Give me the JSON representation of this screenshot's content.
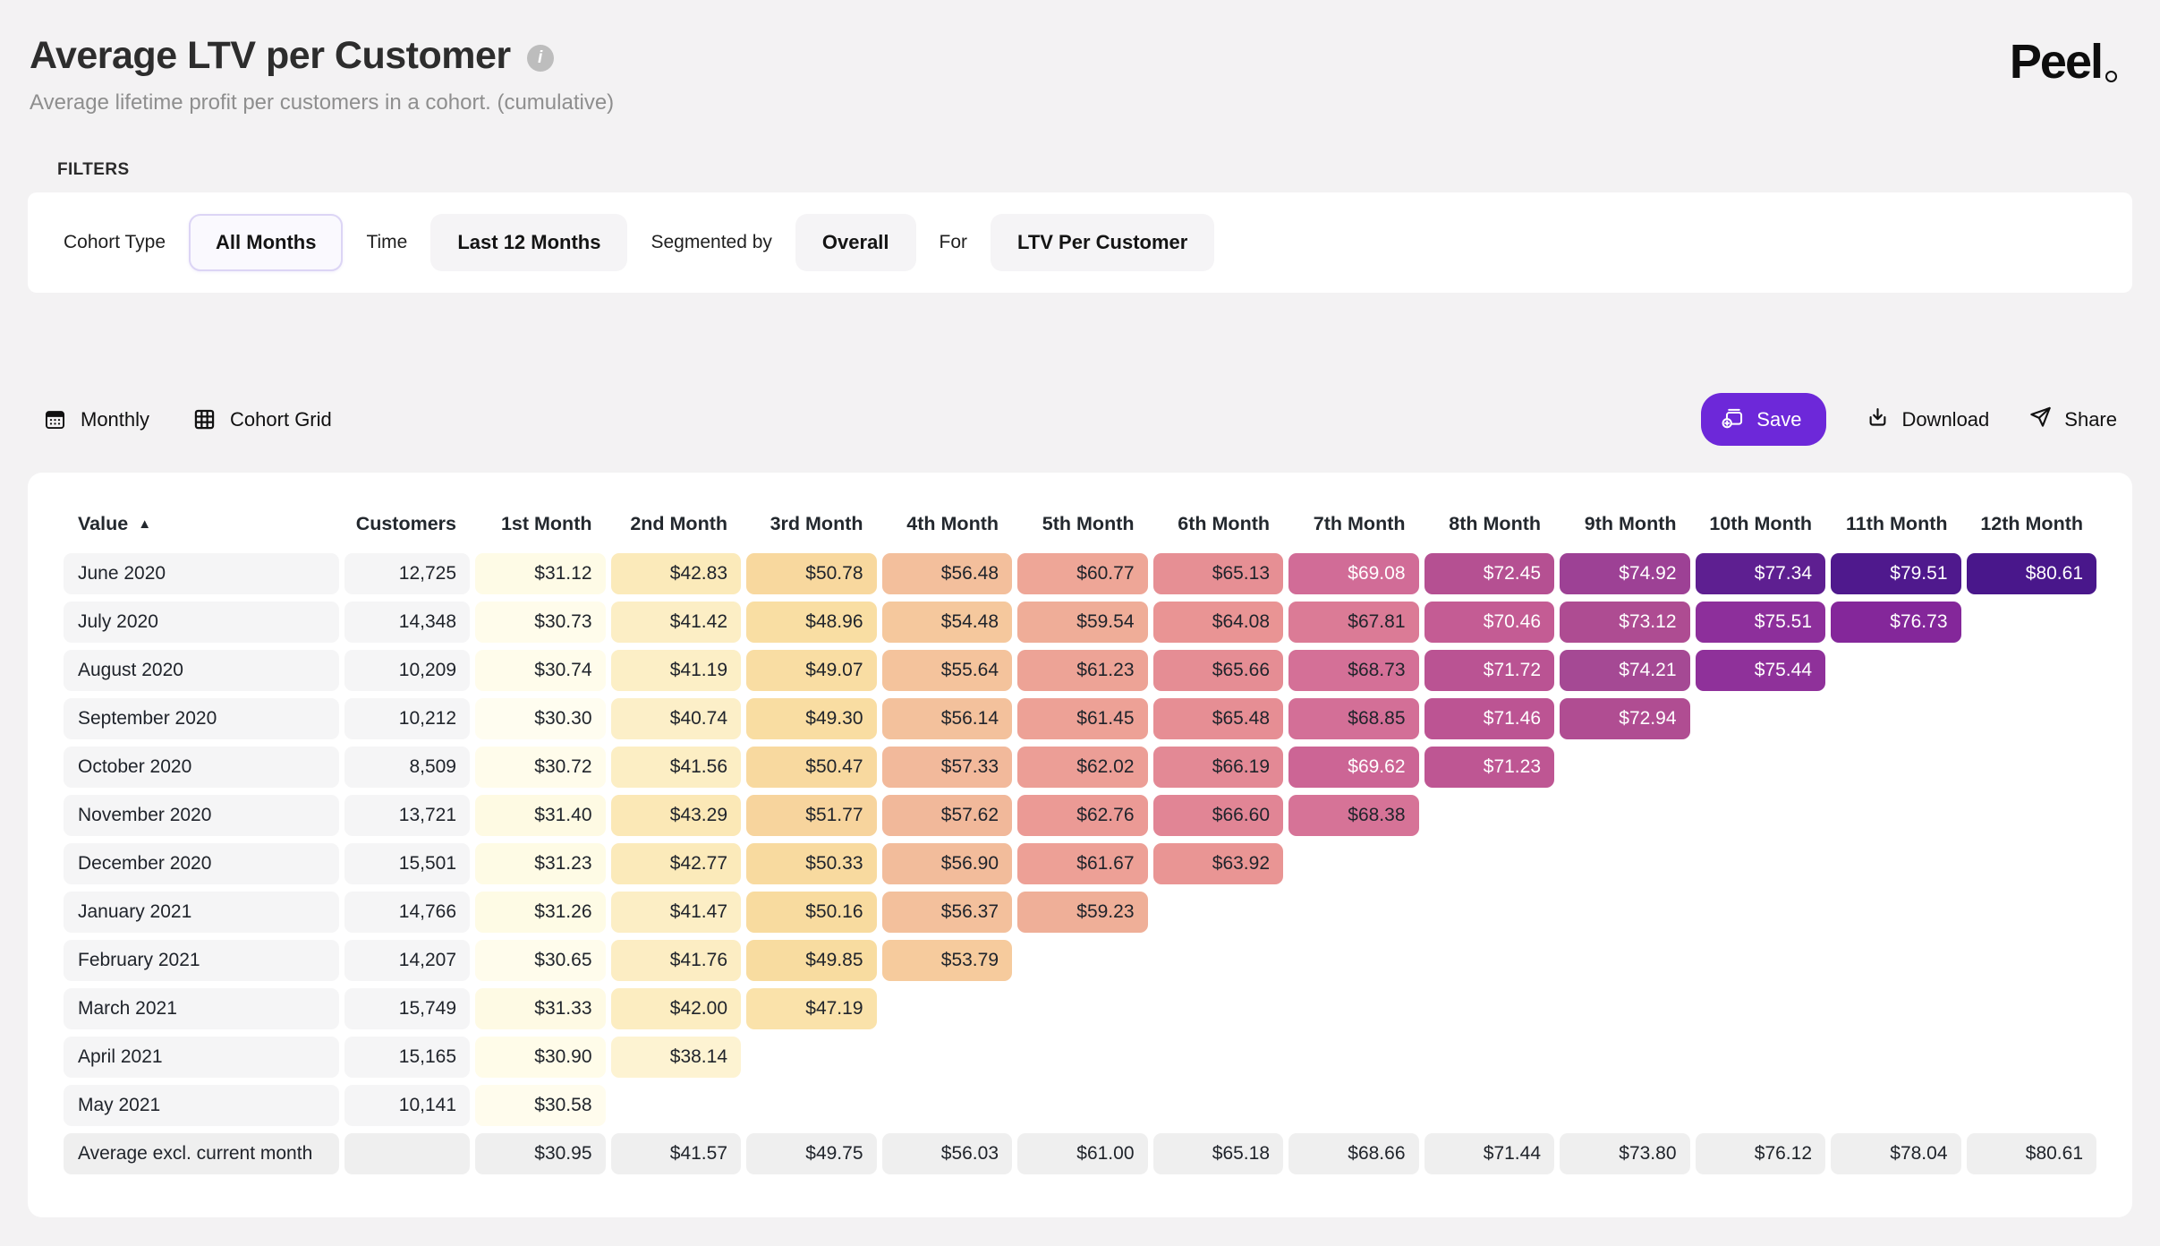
{
  "page": {
    "title": "Average LTV per Customer",
    "subtitle": "Average lifetime profit per customers in a cohort. (cumulative)",
    "filters_heading": "FILTERS",
    "brand": "Peel"
  },
  "filters": [
    {
      "label": "Cohort Type",
      "value": "All Months",
      "selected": true
    },
    {
      "label": "Time",
      "value": "Last 12 Months",
      "selected": false
    },
    {
      "label": "Segmented by",
      "value": "Overall",
      "selected": false
    },
    {
      "label": "For",
      "value": "LTV Per Customer",
      "selected": false
    }
  ],
  "toolbar": {
    "views": [
      {
        "label": "Monthly",
        "icon": "calendar-icon"
      },
      {
        "label": "Cohort Grid",
        "icon": "grid-icon"
      }
    ],
    "actions": [
      {
        "label": "Save",
        "icon": "save-plus-icon",
        "accent": true
      },
      {
        "label": "Download",
        "icon": "download-icon",
        "accent": false
      },
      {
        "label": "Share",
        "icon": "share-icon",
        "accent": false
      }
    ]
  },
  "colors": {
    "accent": "#6D28D9",
    "selected_pill_border": "#DCD5F5",
    "row_label_bg": "#F5F5F6",
    "avg_row_bg": "#EFEFEF",
    "info_icon_bg": "#BDBDBD"
  },
  "chart_data": {
    "type": "heatmap",
    "title": "Average LTV per Customer",
    "value_prefix": "$",
    "sort": {
      "column": "Value",
      "direction": "asc"
    },
    "columns": [
      "Value",
      "Customers",
      "1st Month",
      "2nd Month",
      "3rd Month",
      "4th Month",
      "5th Month",
      "6th Month",
      "7th Month",
      "8th Month",
      "9th Month",
      "10th Month",
      "11th Month",
      "12th Month"
    ],
    "rows": [
      {
        "label": "June 2020",
        "customers": "12,725",
        "values": [
          31.12,
          42.83,
          50.78,
          56.48,
          60.77,
          65.13,
          69.08,
          72.45,
          74.92,
          77.34,
          79.51,
          80.61
        ]
      },
      {
        "label": "July 2020",
        "customers": "14,348",
        "values": [
          30.73,
          41.42,
          48.96,
          54.48,
          59.54,
          64.08,
          67.81,
          70.46,
          73.12,
          75.51,
          76.73
        ]
      },
      {
        "label": "August 2020",
        "customers": "10,209",
        "values": [
          30.74,
          41.19,
          49.07,
          55.64,
          61.23,
          65.66,
          68.73,
          71.72,
          74.21,
          75.44
        ]
      },
      {
        "label": "September 2020",
        "customers": "10,212",
        "values": [
          30.3,
          40.74,
          49.3,
          56.14,
          61.45,
          65.48,
          68.85,
          71.46,
          72.94
        ]
      },
      {
        "label": "October 2020",
        "customers": "8,509",
        "values": [
          30.72,
          41.56,
          50.47,
          57.33,
          62.02,
          66.19,
          69.62,
          71.23
        ]
      },
      {
        "label": "November 2020",
        "customers": "13,721",
        "values": [
          31.4,
          43.29,
          51.77,
          57.62,
          62.76,
          66.6,
          68.38
        ]
      },
      {
        "label": "December 2020",
        "customers": "15,501",
        "values": [
          31.23,
          42.77,
          50.33,
          56.9,
          61.67,
          63.92
        ]
      },
      {
        "label": "January 2021",
        "customers": "14,766",
        "values": [
          31.26,
          41.47,
          50.16,
          56.37,
          59.23
        ]
      },
      {
        "label": "February 2021",
        "customers": "14,207",
        "values": [
          30.65,
          41.76,
          49.85,
          53.79
        ]
      },
      {
        "label": "March 2021",
        "customers": "15,749",
        "values": [
          31.33,
          42.0,
          47.19
        ]
      },
      {
        "label": "April 2021",
        "customers": "15,165",
        "values": [
          30.9,
          38.14
        ]
      },
      {
        "label": "May 2021",
        "customers": "10,141",
        "values": [
          30.58
        ]
      }
    ],
    "footer": {
      "label": "Average excl. current month",
      "values": [
        30.95,
        41.57,
        49.75,
        56.03,
        61.0,
        65.18,
        68.66,
        71.44,
        73.8,
        76.12,
        78.04,
        80.61
      ]
    },
    "color_stops": [
      [
        30.3,
        "#FFFDF0"
      ],
      [
        31.5,
        "#FEFAE2"
      ],
      [
        38.2,
        "#FDF3D2"
      ],
      [
        41.6,
        "#FCEEC4"
      ],
      [
        43.3,
        "#FBE8B6"
      ],
      [
        47.2,
        "#FAE2AA"
      ],
      [
        50.1,
        "#F8DB9F"
      ],
      [
        51.8,
        "#F7D49D"
      ],
      [
        53.8,
        "#F6CB9D"
      ],
      [
        56.5,
        "#F3BF9C"
      ],
      [
        57.7,
        "#F1B79A"
      ],
      [
        59.6,
        "#EFAD98"
      ],
      [
        61.5,
        "#EDA196"
      ],
      [
        62.8,
        "#EB9A95"
      ],
      [
        64.1,
        "#E99494"
      ],
      [
        65.7,
        "#E58D94"
      ],
      [
        66.6,
        "#E18595"
      ],
      [
        67.9,
        "#DB7A96"
      ],
      [
        68.4,
        "#D67397"
      ],
      [
        69.1,
        "#D16C97"
      ],
      [
        69.7,
        "#CB6495"
      ],
      [
        70.5,
        "#C45C94"
      ],
      [
        71.5,
        "#BC5493"
      ],
      [
        72.5,
        "#B55092"
      ],
      [
        73.2,
        "#AD4C92"
      ],
      [
        74.3,
        "#A44994"
      ],
      [
        75.0,
        "#9C4095"
      ],
      [
        75.5,
        "#8D2F9B"
      ],
      [
        76.8,
        "#84279A"
      ],
      [
        77.3,
        "#5E1F91"
      ],
      [
        79.6,
        "#4E198D"
      ],
      [
        80.7,
        "#49178B"
      ]
    ],
    "white_text_min": 69
  }
}
